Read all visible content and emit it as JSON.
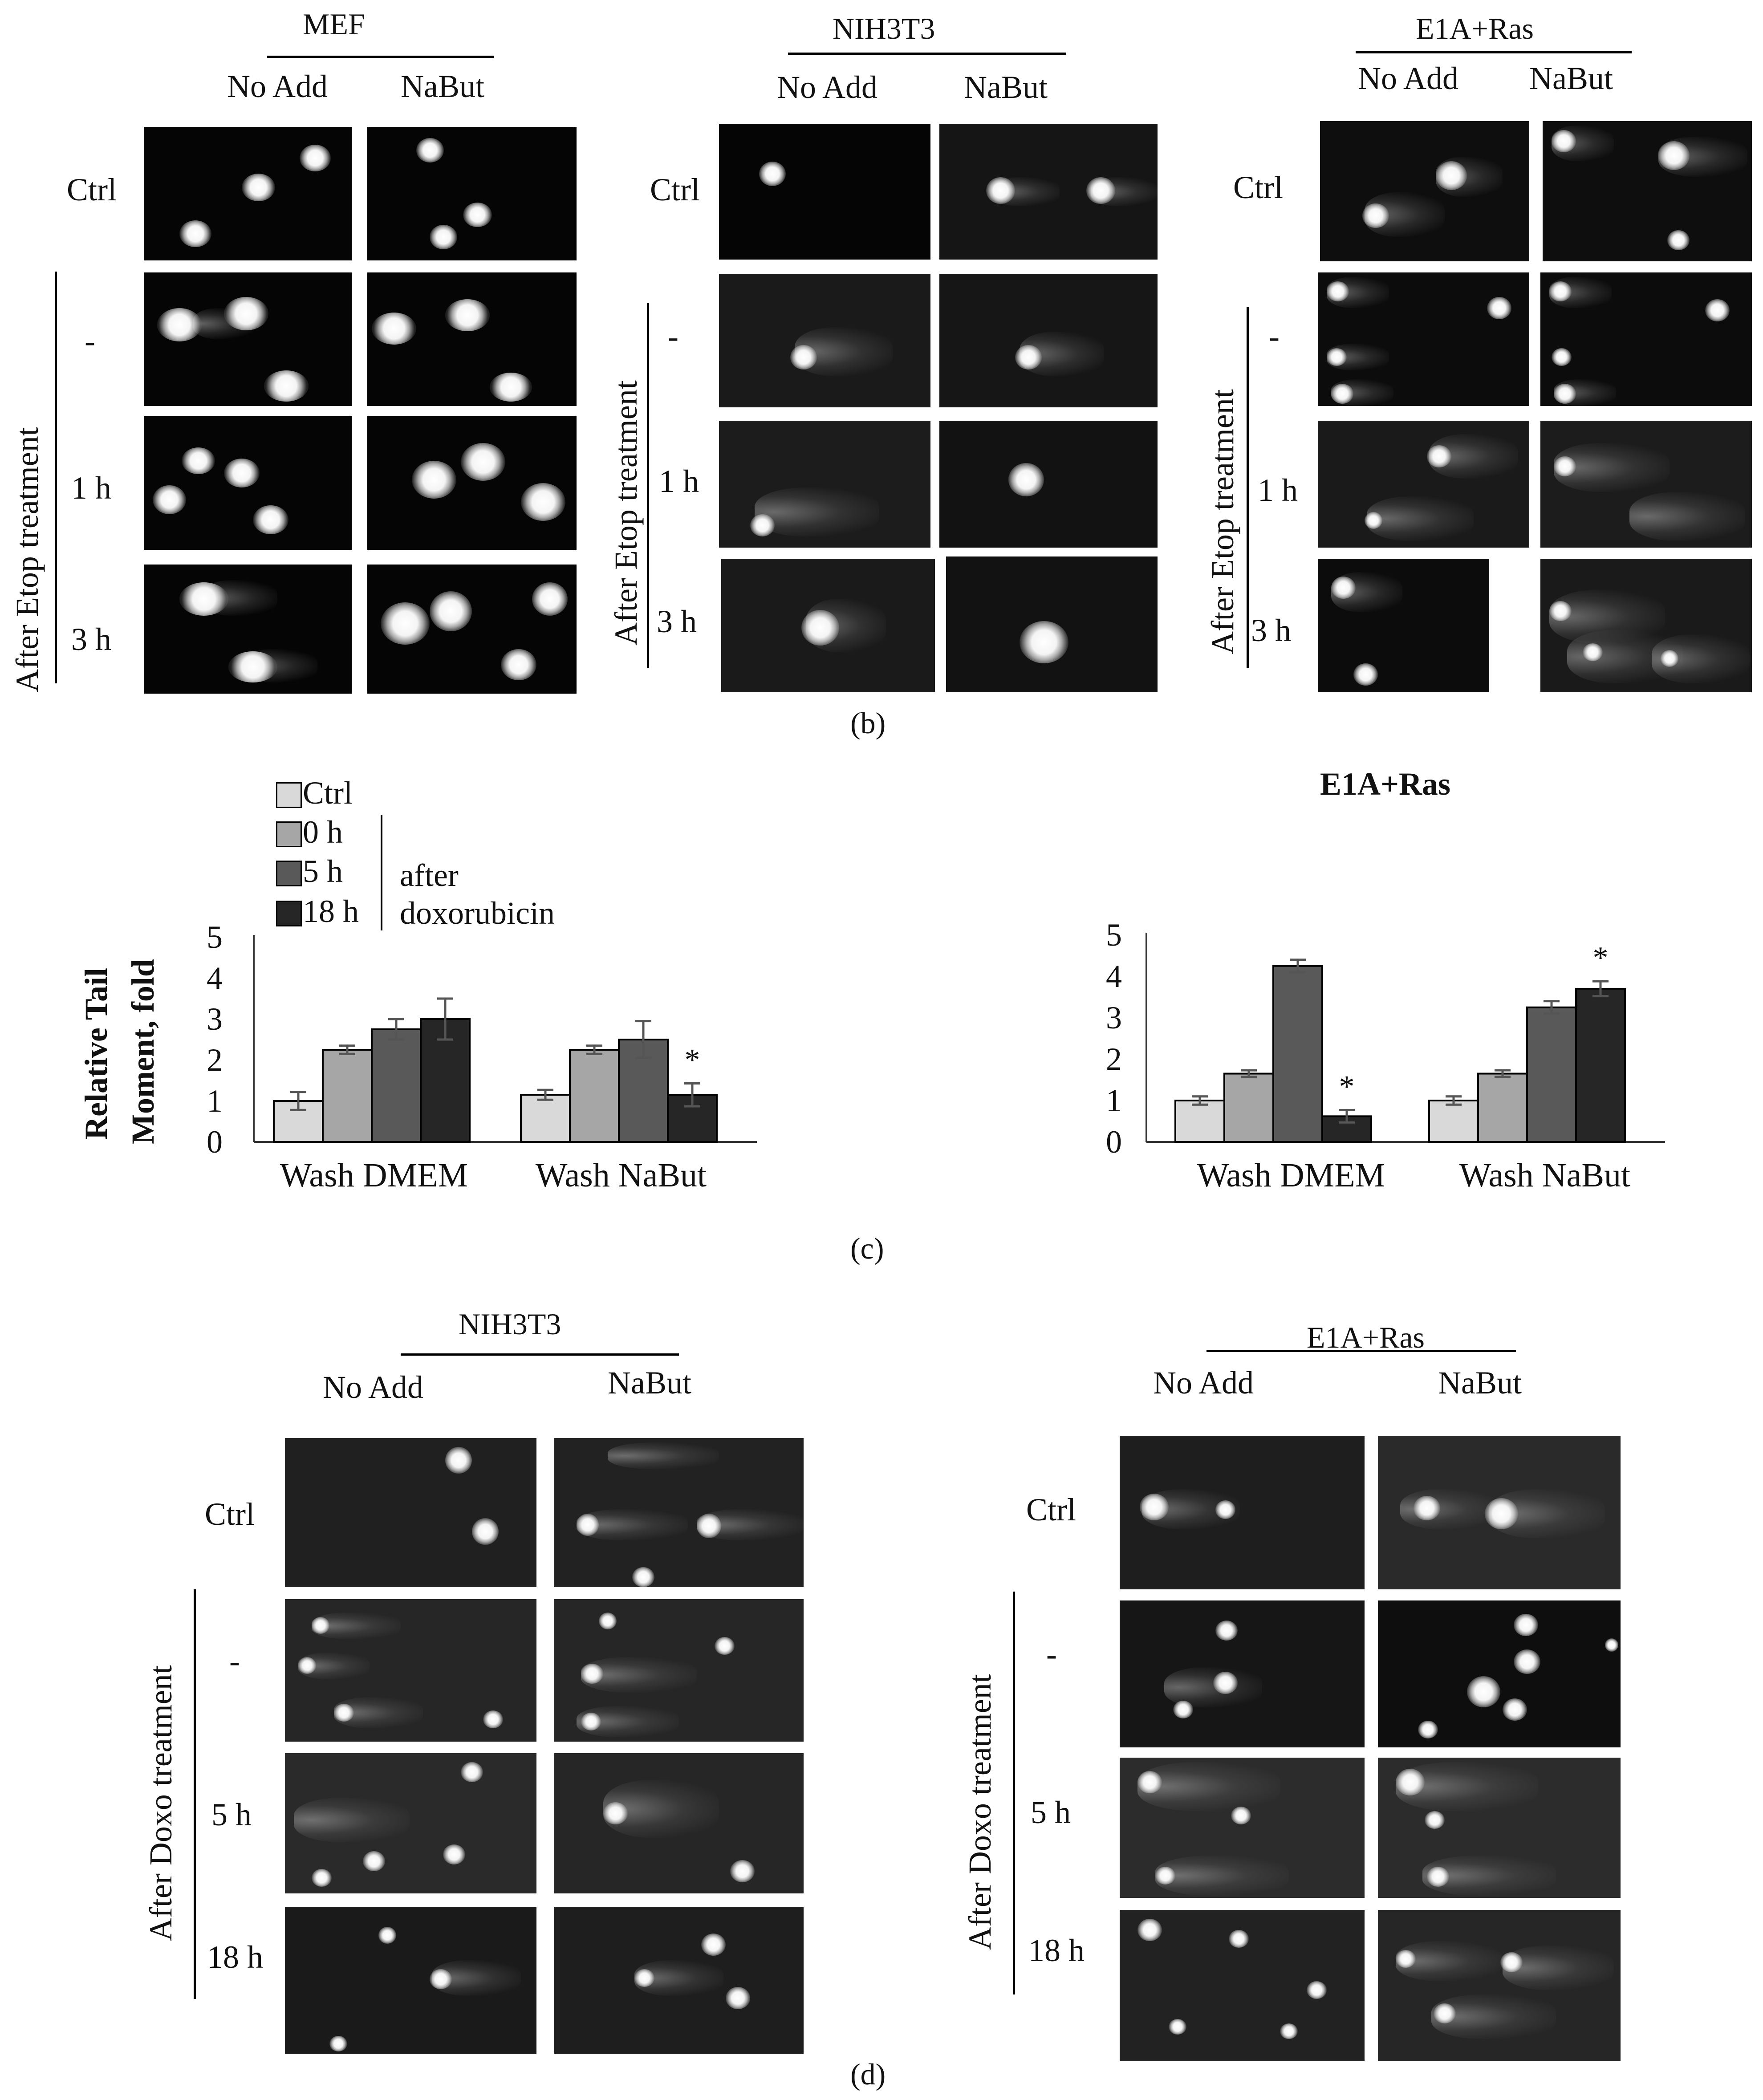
{
  "panel_b": {
    "caption": "(b)",
    "groups": [
      {
        "title": "MEF",
        "col1": "No Add",
        "col2": "NaBut"
      },
      {
        "title": "NIH3T3",
        "col1": "No Add",
        "col2": "NaBut"
      },
      {
        "title": "E1A+Ras",
        "col1": "No Add",
        "col2": "NaBut"
      }
    ],
    "rows": [
      "Ctrl",
      "-",
      "1 h",
      "3 h"
    ],
    "side_label": "After Etop treatment"
  },
  "panel_c": {
    "caption": "(c)",
    "legend": {
      "items": [
        "Ctrl",
        "0 h",
        "5 h",
        "18 h"
      ],
      "bracket_text_1": "after",
      "bracket_text_2": "doxorubicin"
    },
    "right_title": "E1A+Ras",
    "ylabel_line1": "Relative Tail",
    "ylabel_line2": "Moment, fold",
    "colors": [
      "#d9d9d9",
      "#a6a6a6",
      "#595959",
      "#262626"
    ],
    "star": "*"
  },
  "chart_data": [
    {
      "type": "bar",
      "title": "",
      "ylabel": "Relative Tail Moment, fold",
      "ylim": [
        0,
        5
      ],
      "yticks": [
        "0",
        "1",
        "2",
        "3",
        "4",
        "5"
      ],
      "categories": [
        "Wash DMEM",
        "Wash NaBut"
      ],
      "series": [
        {
          "name": "Ctrl",
          "values": [
            1.0,
            1.15
          ],
          "errors": [
            0.22,
            0.12
          ]
        },
        {
          "name": "0 h",
          "values": [
            2.25,
            2.25
          ],
          "errors": [
            0.1,
            0.1
          ]
        },
        {
          "name": "5 h",
          "values": [
            2.75,
            2.5
          ],
          "errors": [
            0.25,
            0.45
          ]
        },
        {
          "name": "18 h",
          "values": [
            3.0,
            1.15
          ],
          "errors": [
            0.5,
            0.28
          ]
        }
      ],
      "significance": [
        {
          "category": "Wash NaBut",
          "series": "18 h",
          "mark": "*"
        }
      ]
    },
    {
      "type": "bar",
      "title": "E1A+Ras",
      "ylabel": "",
      "ylim": [
        0,
        5
      ],
      "yticks": [
        "0",
        "1",
        "2",
        "3",
        "4",
        "5"
      ],
      "categories": [
        "Wash DMEM",
        "Wash NaBut"
      ],
      "series": [
        {
          "name": "Ctrl",
          "values": [
            1.0,
            1.0
          ],
          "errors": [
            0.1,
            0.1
          ]
        },
        {
          "name": "0 h",
          "values": [
            1.65,
            1.65
          ],
          "errors": [
            0.08,
            0.08
          ]
        },
        {
          "name": "5 h",
          "values": [
            4.25,
            3.25
          ],
          "errors": [
            0.15,
            0.15
          ]
        },
        {
          "name": "18 h",
          "values": [
            0.62,
            3.7
          ],
          "errors": [
            0.15,
            0.18
          ]
        }
      ],
      "significance": [
        {
          "category": "Wash DMEM",
          "series": "18 h",
          "mark": "*"
        },
        {
          "category": "Wash NaBut",
          "series": "18 h",
          "mark": "*"
        }
      ]
    }
  ],
  "panel_d": {
    "caption": "(d)",
    "groups": [
      {
        "title": "NIH3T3",
        "col1": "No Add",
        "col2": "NaBut"
      },
      {
        "title": "E1A+Ras",
        "col1": "No Add",
        "col2": "NaBut"
      }
    ],
    "rows": [
      "Ctrl",
      "-",
      "5 h",
      "18 h"
    ],
    "side_label": "After Doxo treatment"
  }
}
